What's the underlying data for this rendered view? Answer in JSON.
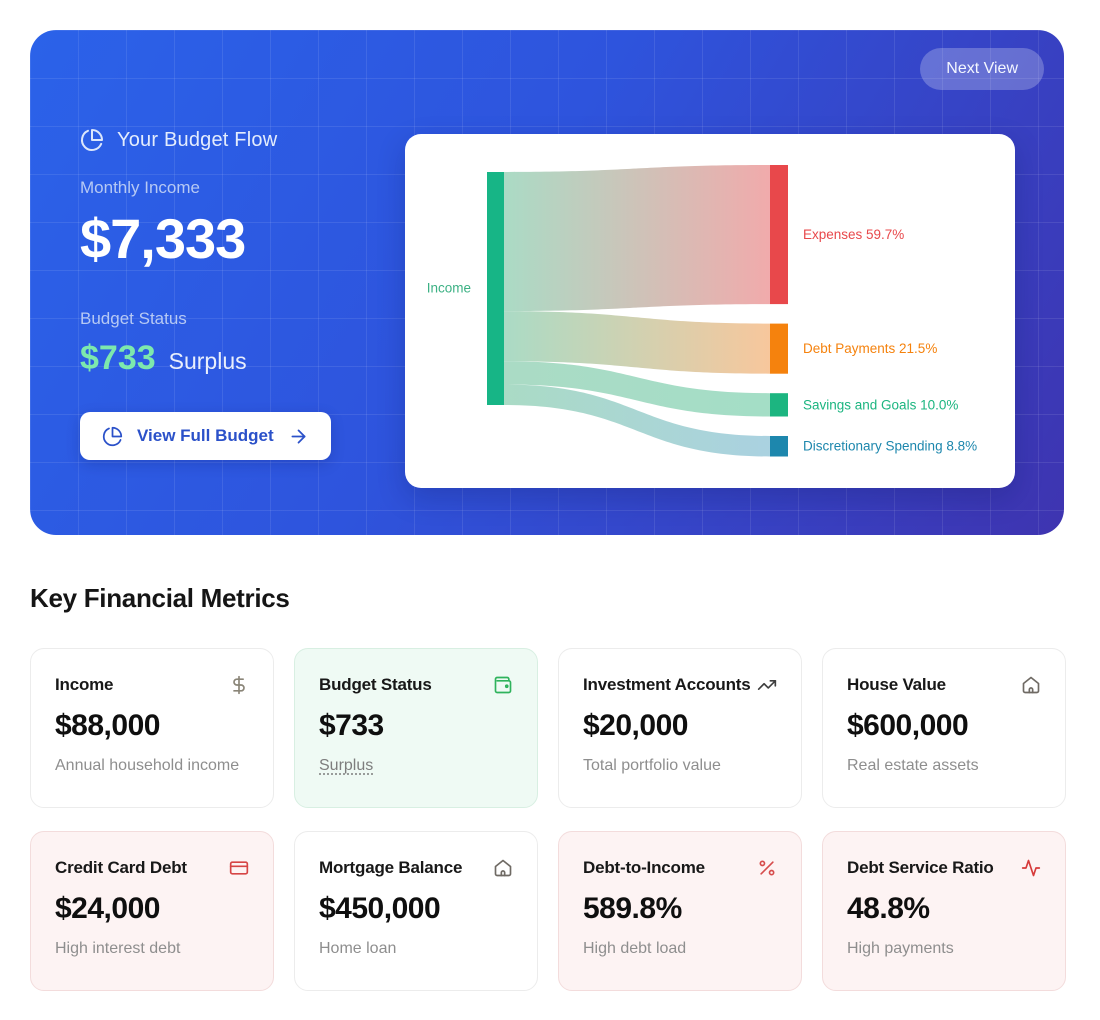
{
  "hero": {
    "next_view_label": "Next View",
    "title": "Your Budget Flow",
    "monthly_income_label": "Monthly Income",
    "monthly_income_value": "$7,333",
    "budget_status_label": "Budget Status",
    "budget_status_value": "$733",
    "budget_status_suffix": "Surplus",
    "cta_label": "View Full Budget",
    "colors": {
      "surplus_green": "#7de8ad",
      "cta_text": "#2b51c9"
    }
  },
  "sankey": {
    "source_label": "Income",
    "source_color": "#17b586",
    "source_label_color": "#3cb184",
    "source_light": "#a6d9c2",
    "flows": [
      {
        "label": "Expenses 59.7%",
        "pct": 59.7,
        "color": "#e8484b",
        "light": "#f0a6a7"
      },
      {
        "label": "Debt Payments 21.5%",
        "pct": 21.5,
        "color": "#f5820d",
        "light": "#f7c497"
      },
      {
        "label": "Savings and Goals 10.0%",
        "pct": 10.0,
        "color": "#1cb580",
        "light": "#9fdcc3"
      },
      {
        "label": "Discretionary Spending 8.8%",
        "pct": 8.8,
        "color": "#1d87ad",
        "light": "#a6cfdf"
      }
    ]
  },
  "chart_data": {
    "type": "sankey",
    "title": "Your Budget Flow",
    "source_node": "Income",
    "links": [
      {
        "source": "Income",
        "target": "Expenses",
        "value_pct": 59.7
      },
      {
        "source": "Income",
        "target": "Debt Payments",
        "value_pct": 21.5
      },
      {
        "source": "Income",
        "target": "Savings and Goals",
        "value_pct": 10.0
      },
      {
        "source": "Income",
        "target": "Discretionary Spending",
        "value_pct": 8.8
      }
    ]
  },
  "metrics": {
    "heading": "Key Financial Metrics",
    "cards": [
      {
        "title": "Income",
        "icon": "dollar-sign-icon",
        "icon_color": "#8a8578",
        "value": "$88,000",
        "subtitle": "Annual household income",
        "variant": "default",
        "subtitle_dotted": false
      },
      {
        "title": "Budget Status",
        "icon": "wallet-icon",
        "icon_color": "#2fb35c",
        "value": "$733",
        "subtitle": "Surplus",
        "variant": "positive",
        "subtitle_dotted": true
      },
      {
        "title": "Investment Accounts",
        "icon": "trending-up-icon",
        "icon_color": "#3f3f3f",
        "value": "$20,000",
        "subtitle": "Total portfolio value",
        "variant": "default",
        "subtitle_dotted": false
      },
      {
        "title": "House Value",
        "icon": "home-icon",
        "icon_color": "#6f6a64",
        "value": "$600,000",
        "subtitle": "Real estate assets",
        "variant": "default",
        "subtitle_dotted": false
      },
      {
        "title": "Credit Card Debt",
        "icon": "credit-card-icon",
        "icon_color": "#d64545",
        "value": "$24,000",
        "subtitle": "High interest debt",
        "variant": "negative",
        "subtitle_dotted": false
      },
      {
        "title": "Mortgage Balance",
        "icon": "home-icon",
        "icon_color": "#6f6a64",
        "value": "$450,000",
        "subtitle": "Home loan",
        "variant": "default",
        "subtitle_dotted": false
      },
      {
        "title": "Debt-to-Income",
        "icon": "percent-icon",
        "icon_color": "#d64c4c",
        "value": "589.8%",
        "subtitle": "High debt load",
        "variant": "negative",
        "subtitle_dotted": false
      },
      {
        "title": "Debt Service Ratio",
        "icon": "activity-icon",
        "icon_color": "#d63a3a",
        "value": "48.8%",
        "subtitle": "High payments",
        "variant": "negative",
        "subtitle_dotted": false
      }
    ]
  }
}
